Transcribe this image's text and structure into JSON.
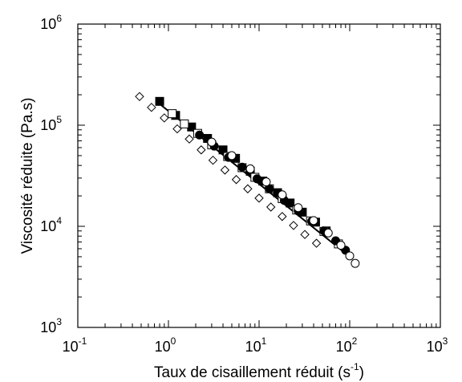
{
  "chart_data": {
    "type": "scatter",
    "x_scale": "log",
    "y_scale": "log",
    "xlim": [
      0.1,
      1000
    ],
    "ylim": [
      1000,
      1000000
    ],
    "xlabel": "Taux de cisaillement réduit (s",
    "xlabel_sup": "-1",
    "xlabel_close": ")",
    "ylabel": "Viscosité réduite (Pa.s)",
    "grid": false,
    "x_ticks": [
      {
        "base": "10",
        "exp": "-1",
        "value": 0.1
      },
      {
        "base": "10",
        "exp": "0",
        "value": 1
      },
      {
        "base": "10",
        "exp": "1",
        "value": 10
      },
      {
        "base": "10",
        "exp": "2",
        "value": 100
      },
      {
        "base": "10",
        "exp": "3",
        "value": 1000
      }
    ],
    "y_ticks": [
      {
        "base": "10",
        "exp": "3",
        "value": 1000
      },
      {
        "base": "10",
        "exp": "4",
        "value": 10000
      },
      {
        "base": "10",
        "exp": "5",
        "value": 100000
      },
      {
        "base": "10",
        "exp": "6",
        "value": 1000000
      }
    ],
    "series": [
      {
        "marker": "diamond-open",
        "x": [
          0.48,
          0.65,
          0.9,
          1.25,
          1.7,
          2.3,
          3.1,
          4.2,
          5.6,
          7.5,
          10,
          13.5,
          18,
          24,
          32,
          43
        ],
        "y": [
          192000,
          150000,
          118000,
          92000,
          73000,
          57000,
          45000,
          36000,
          29000,
          23500,
          19000,
          15500,
          12500,
          10200,
          8300,
          6800
        ]
      },
      {
        "marker": "square-filled",
        "x": [
          0.8,
          1.2,
          1.8,
          2.7,
          4,
          5.5,
          8,
          11,
          16,
          22,
          30,
          42,
          55
        ],
        "y": [
          172000,
          125000,
          96000,
          74000,
          57000,
          47000,
          35000,
          28000,
          21500,
          17000,
          13800,
          11000,
          9000
        ]
      },
      {
        "marker": "square-open",
        "x": [
          1.1,
          1.5,
          2.1,
          3,
          4.5,
          6.5,
          9,
          13,
          18,
          26,
          37,
          52,
          75
        ],
        "y": [
          130000,
          103000,
          83000,
          64000,
          49000,
          38000,
          30500,
          23500,
          18800,
          14500,
          11300,
          8900,
          6700
        ]
      },
      {
        "marker": "circle-filled",
        "x": [
          2.2,
          3.2,
          4.6,
          6.5,
          9.5,
          13,
          19,
          27,
          38,
          52,
          70,
          90
        ],
        "y": [
          80000,
          62000,
          48000,
          38500,
          29500,
          23500,
          18000,
          14200,
          11200,
          9000,
          7200,
          5800
        ]
      },
      {
        "marker": "circle-open",
        "x": [
          3,
          5,
          8,
          12,
          18,
          27,
          40,
          58,
          80,
          100,
          115
        ],
        "y": [
          68000,
          50000,
          37000,
          27500,
          20500,
          15300,
          11400,
          8600,
          6500,
          5100,
          4300
        ]
      }
    ],
    "fit_line": {
      "x": [
        0.75,
        100
      ],
      "y": [
        170000,
        5000
      ]
    }
  }
}
